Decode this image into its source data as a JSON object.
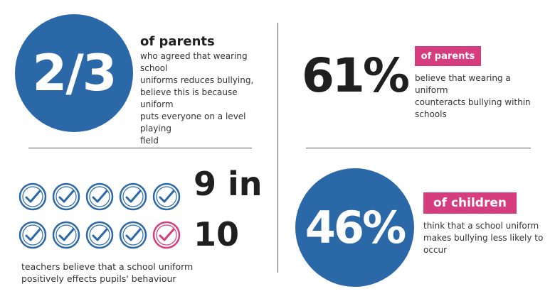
{
  "block1": {
    "stat": "2/3",
    "heading": "of parents",
    "body": [
      "who agreed that wearing school",
      "uniforms reduces bullying,",
      "believe this is because uniform",
      "puts everyone on a level playing",
      "field"
    ]
  },
  "block2": {
    "stat": "61%",
    "label": "of parents",
    "body": [
      "believe that wearing a uniform",
      "counteracts bullying within",
      "schools"
    ]
  },
  "block3": {
    "stat_line1": "9 in",
    "stat_line2": "10",
    "checks_total": 10,
    "checks_blue": 9,
    "body": [
      "teachers believe that a school uniform",
      "positively effects pupils' behaviour"
    ]
  },
  "block4": {
    "stat": "46%",
    "label": "of children",
    "body": [
      "think that a school uniform",
      "makes bullying less likely to",
      "occur"
    ]
  },
  "colors": {
    "blue": "#2b68a8",
    "pink": "#d63d7e",
    "dark": "#222222"
  }
}
